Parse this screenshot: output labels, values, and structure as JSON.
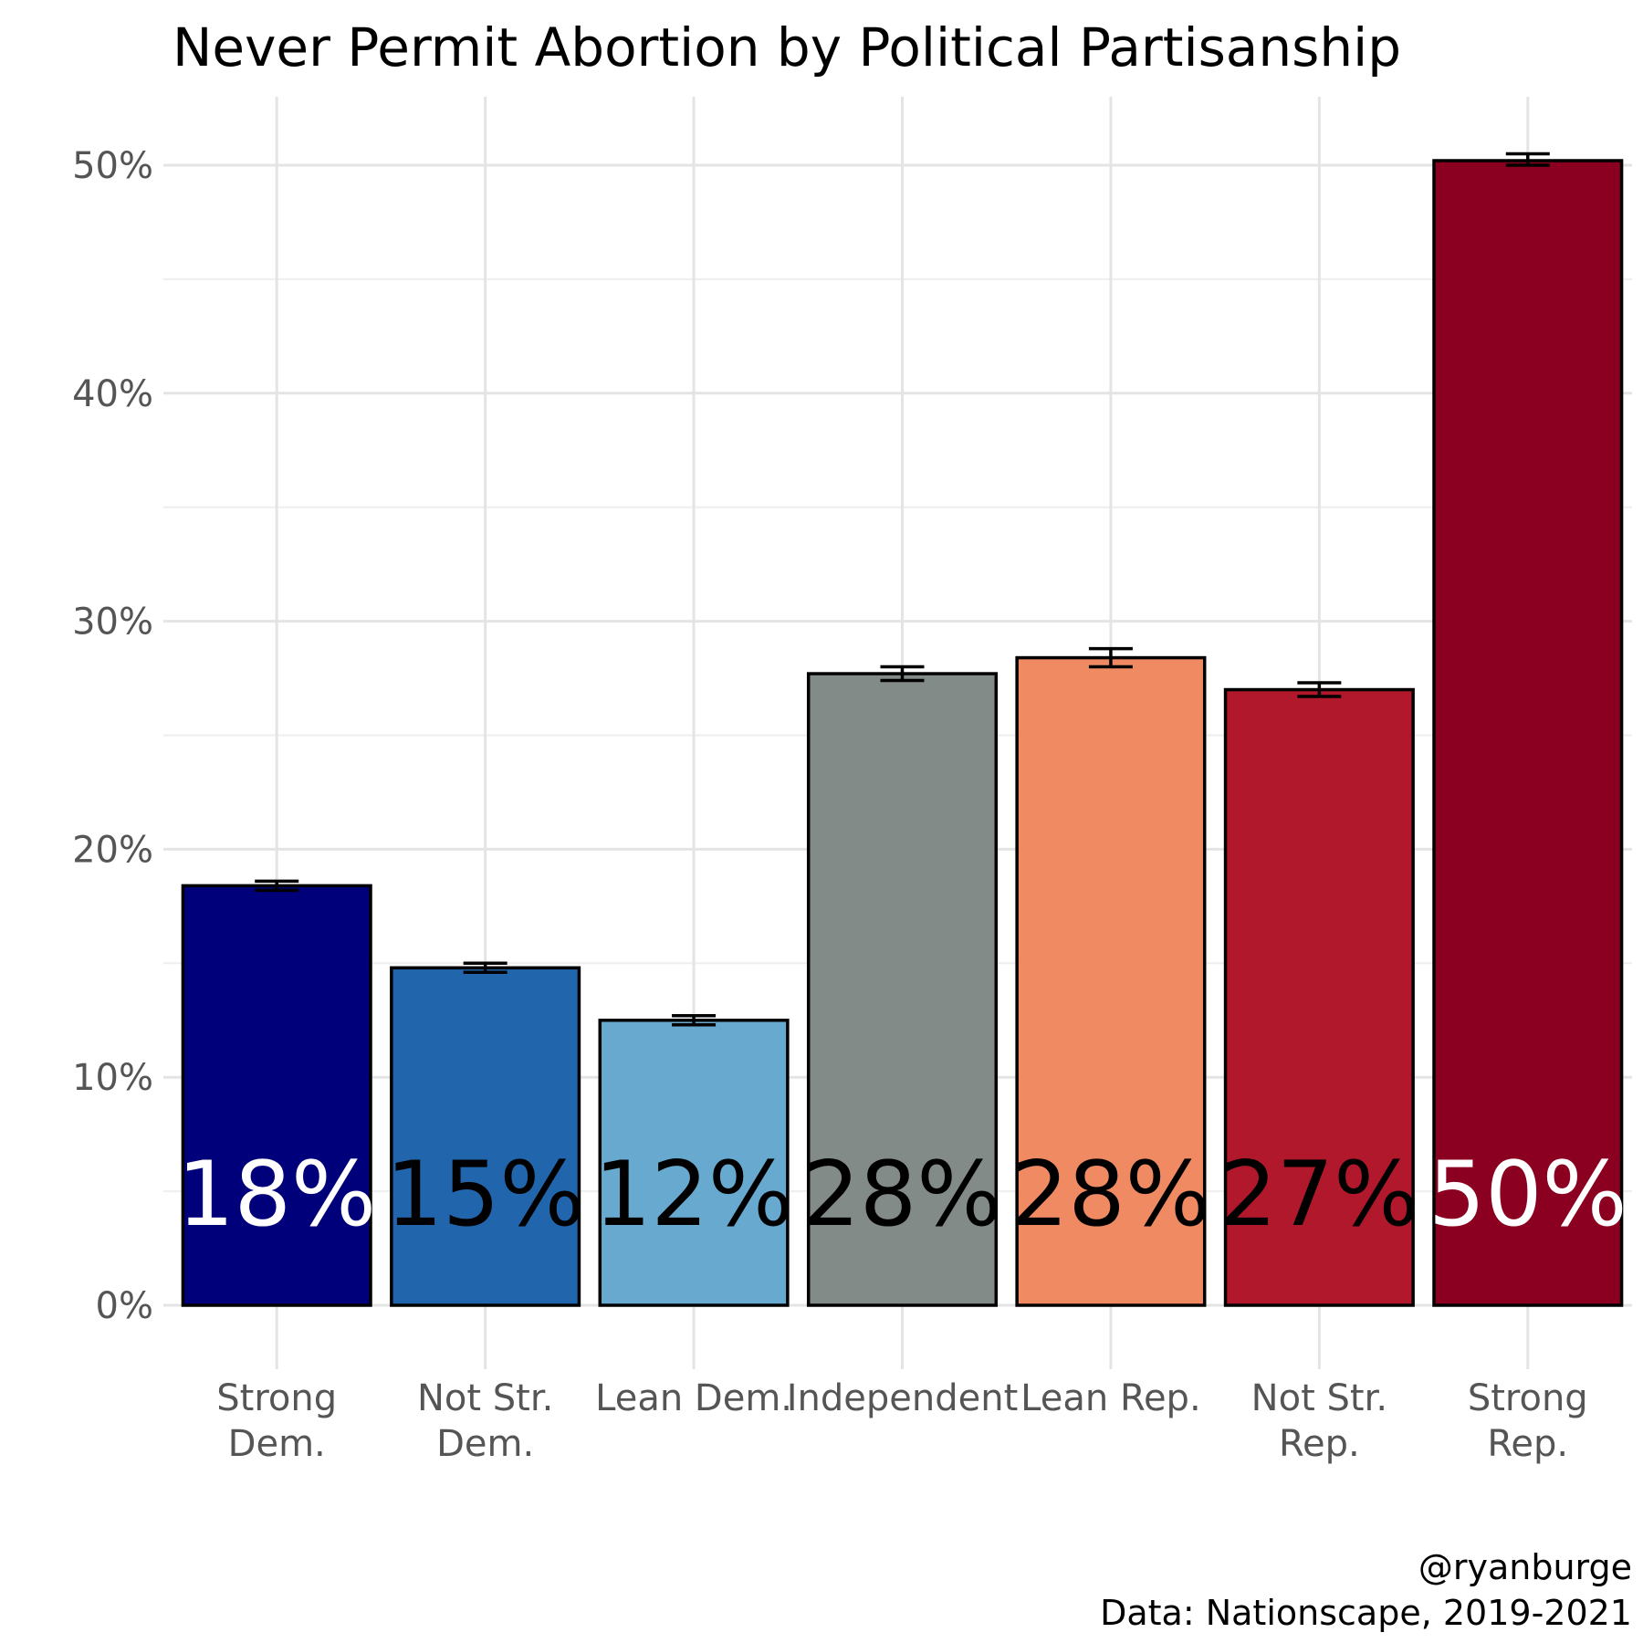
{
  "chart_data": {
    "type": "bar",
    "title": "Never Permit Abortion by Political Partisanship",
    "xlabel": "",
    "ylabel": "",
    "categories": [
      [
        "Strong",
        "Dem."
      ],
      [
        "Not Str.",
        "Dem."
      ],
      [
        "Lean Dem."
      ],
      [
        "Independent"
      ],
      [
        "Lean Rep."
      ],
      [
        "Not Str.",
        "Rep."
      ],
      [
        "Strong",
        "Rep."
      ]
    ],
    "values": [
      0.184,
      0.148,
      0.125,
      0.277,
      0.284,
      0.27,
      0.502
    ],
    "error_low": [
      0.182,
      0.146,
      0.123,
      0.274,
      0.28,
      0.267,
      0.5
    ],
    "error_high": [
      0.186,
      0.15,
      0.127,
      0.28,
      0.288,
      0.273,
      0.505
    ],
    "bar_labels": [
      "18%",
      "15%",
      "12%",
      "28%",
      "28%",
      "27%",
      "50%"
    ],
    "bar_colors": [
      "#00007a",
      "#2166ac",
      "#67a9cf",
      "#838b89",
      "#ef8a62",
      "#b2182b",
      "#8b0021"
    ],
    "label_colors": [
      "#ffffff",
      "#000000",
      "#000000",
      "#000000",
      "#000000",
      "#000000",
      "#ffffff"
    ],
    "ylim": [
      0,
      0.53
    ],
    "yticks": [
      0,
      0.1,
      0.2,
      0.3,
      0.4,
      0.5
    ],
    "ytick_labels": [
      "0%",
      "10%",
      "20%",
      "30%",
      "40%",
      "50%"
    ],
    "grid": true,
    "legend": "none"
  },
  "caption": {
    "line1": "@ryanburge",
    "line2": "Data: Nationscape, 2019-2021"
  }
}
